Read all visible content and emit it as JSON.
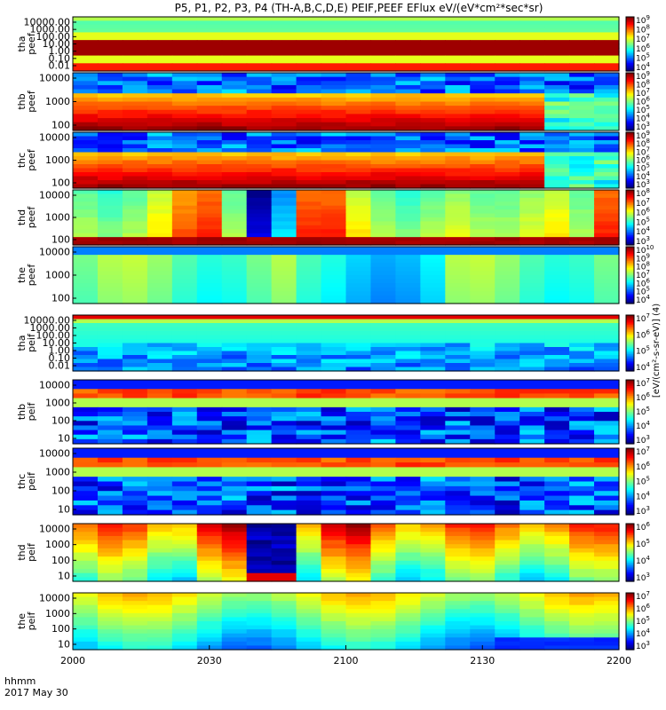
{
  "title": "P5, P1, P2, P3, P4 (TH-A,B,C,D,E) PEIF,PEEF EFlux eV/(eV*cm²*sec*sr)",
  "colorbar_unit": "[eV/(cm²-s-sr-eV)] (4)",
  "x_axis": {
    "corner_label_1": "hhmm",
    "corner_label_2": "2017 May 30",
    "ticks": [
      "2000",
      "2030",
      "2100",
      "2130",
      "2200"
    ]
  },
  "chart_data": [
    {
      "type": "heatmap",
      "ylabel": "tha peef",
      "yticks": [
        "10000.00",
        "1000.00",
        "100.00",
        "10.00",
        "1.00",
        "0.10",
        "0.01"
      ],
      "cbar_exp": [
        4,
        5,
        6,
        7,
        8,
        9
      ],
      "pattern": "bands"
    },
    {
      "type": "heatmap",
      "ylabel": "thb peef",
      "yticks": [
        "10000",
        "1000",
        "100"
      ],
      "cbar_exp": [
        3,
        4,
        5,
        6,
        7,
        8,
        9
      ],
      "pattern": "noisy-bands"
    },
    {
      "type": "heatmap",
      "ylabel": "thc peef",
      "yticks": [
        "10000",
        "1000",
        "100"
      ],
      "cbar_exp": [
        3,
        4,
        5,
        6,
        7,
        8,
        9
      ],
      "pattern": "noisy-bands"
    },
    {
      "type": "heatmap",
      "ylabel": "thd peef",
      "yticks": [
        "10000",
        "1000",
        "100"
      ],
      "cbar_exp": [
        3,
        4,
        5,
        6,
        7,
        8
      ],
      "pattern": "blocks"
    },
    {
      "type": "heatmap",
      "ylabel": "the peef",
      "yticks": [
        "10000",
        "1000",
        "100"
      ],
      "cbar_exp": [
        4,
        5,
        6,
        7,
        8,
        9,
        10
      ],
      "pattern": "smooth"
    },
    {
      "type": "heatmap",
      "ylabel": "tha peif",
      "yticks": [
        "10000.00",
        "1000.00",
        "100.00",
        "10.00",
        "1.00",
        "0.10",
        "0.01"
      ],
      "cbar_exp": [
        4,
        5,
        6,
        7
      ],
      "pattern": "ion-low"
    },
    {
      "type": "heatmap",
      "ylabel": "thb peif",
      "yticks": [
        "10000",
        "1000",
        "100",
        "10"
      ],
      "cbar_exp": [
        3,
        4,
        5,
        6,
        7
      ],
      "pattern": "ion-noisy"
    },
    {
      "type": "heatmap",
      "ylabel": "thc peif",
      "yticks": [
        "10000",
        "1000",
        "100",
        "10"
      ],
      "cbar_exp": [
        3,
        4,
        5,
        6,
        7
      ],
      "pattern": "ion-noisy"
    },
    {
      "type": "heatmap",
      "ylabel": "thd peif",
      "yticks": [
        "10000",
        "1000",
        "100",
        "10"
      ],
      "cbar_exp": [
        3,
        4,
        5,
        6
      ],
      "pattern": "ion-blocks"
    },
    {
      "type": "heatmap",
      "ylabel": "the peif",
      "yticks": [
        "10000",
        "1000",
        "100",
        "10"
      ],
      "cbar_exp": [
        3,
        4,
        5,
        6,
        7
      ],
      "pattern": "ion-smooth"
    }
  ]
}
